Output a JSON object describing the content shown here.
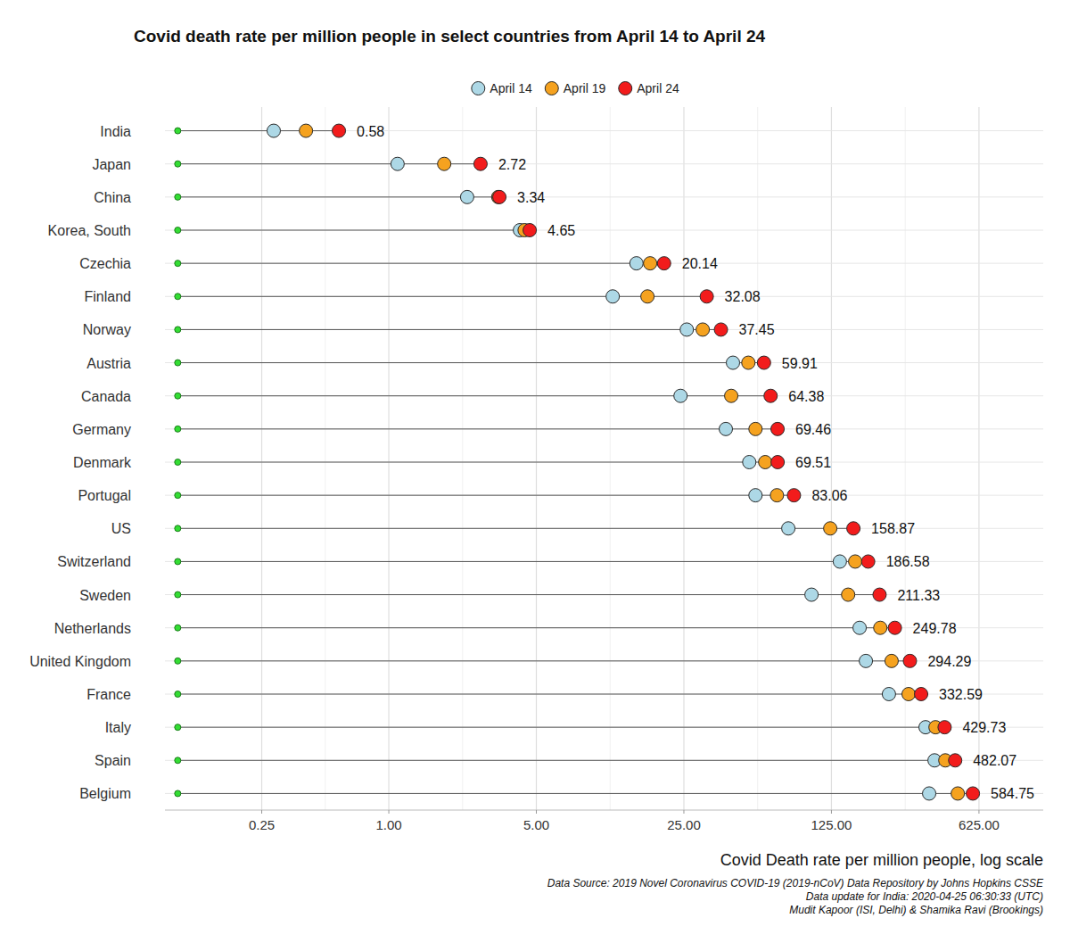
{
  "chart_data": {
    "type": "dot",
    "title": "Covid death rate per million people in select countries from April 14 to April 24",
    "x_label": "Covid Death rate per million people, log scale",
    "annotations": [
      "Data Source: 2019 Novel Coronavirus COVID-19 (2019-nCoV) Data Repository by Johns Hopkins CSSE",
      "Data update for India: 2020-04-25 06:30:33 (UTC)",
      "Mudit Kapoor (ISI, Delhi) & Shamika Ravi (Brookings)"
    ],
    "orientation": "horizontal",
    "log": "x",
    "grid": true,
    "legend": "top",
    "xlim": [
      0.087,
      1260
    ],
    "xticks": [
      0.25,
      {
        "value": 1,
        "label": "1.00"
      },
      {
        "value": 5,
        "label": "5.00"
      },
      {
        "value": 25,
        "label": "25.00"
      },
      {
        "value": 125,
        "label": "125.00"
      },
      {
        "value": 625,
        "label": "625.00"
      }
    ],
    "baseline": 0.1,
    "categories": [
      "India",
      "Japan",
      "China",
      "Korea, South",
      "Czechia",
      "Finland",
      "Norway",
      "Austria",
      "Canada",
      "Germany",
      "Denmark",
      "Portugal",
      "US",
      "Switzerland",
      "Sweden",
      "Netherlands",
      "United Kingdom",
      "France",
      "Italy",
      "Spain",
      "Belgium"
    ],
    "series": [
      {
        "name": "April 14",
        "color": "#add8e6",
        "marker": "circle",
        "values": [
          0.285,
          1.1,
          2.35,
          4.18,
          14.9,
          11.5,
          25.8,
          42.7,
          24.1,
          39.5,
          51,
          54.6,
          78.1,
          137,
          100.6,
          170,
          182,
          234,
          349,
          385,
          363
        ]
      },
      {
        "name": "April 19",
        "color": "#f5a21f",
        "marker": "circle",
        "values": [
          0.405,
          1.83,
          3.3,
          4.4,
          17.3,
          16.8,
          30.7,
          50.5,
          41.9,
          54.6,
          60.7,
          69,
          123.4,
          162,
          150,
          213,
          241,
          290,
          389,
          433,
          496
        ]
      },
      {
        "name": "April 24",
        "color": "#f21c1c",
        "marker": "circle",
        "data_labels": true,
        "values": [
          0.58,
          2.72,
          3.34,
          4.65,
          20.14,
          32.08,
          37.45,
          59.91,
          64.38,
          69.46,
          69.51,
          83.06,
          158.87,
          186.58,
          211.33,
          249.78,
          294.29,
          332.59,
          429.73,
          482.07,
          584.75
        ]
      }
    ]
  }
}
